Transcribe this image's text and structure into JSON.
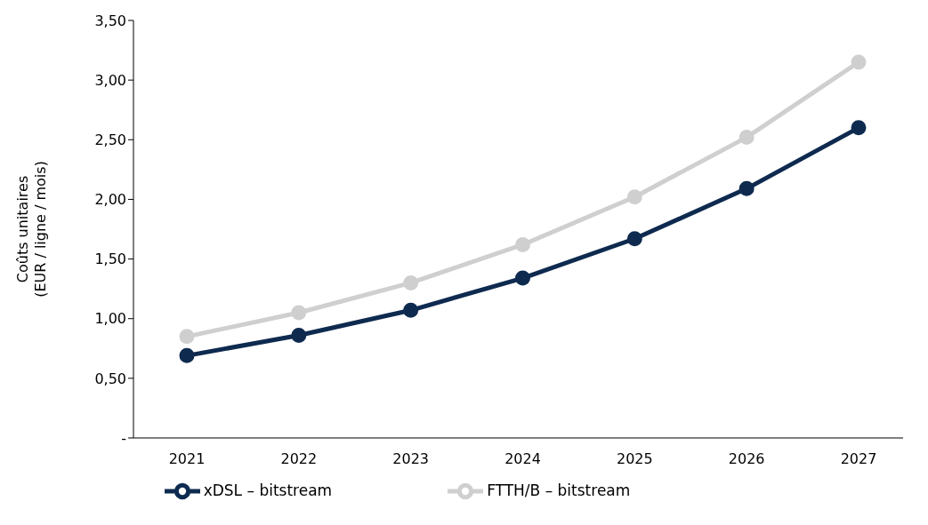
{
  "chart_data": {
    "type": "line",
    "ylabel": "Coûts unitaires\n(EUR / ligne / mois)",
    "categories": [
      "2021",
      "2022",
      "2023",
      "2024",
      "2025",
      "2026",
      "2027"
    ],
    "series": [
      {
        "name": "xDSL – bitstream",
        "color": "#0e2a4f",
        "values": [
          0.69,
          0.86,
          1.07,
          1.34,
          1.67,
          2.09,
          2.6
        ]
      },
      {
        "name": "FTTH/B – bitstream",
        "color": "#cfcfcf",
        "values": [
          0.85,
          1.05,
          1.3,
          1.62,
          2.02,
          2.52,
          3.15
        ]
      }
    ],
    "ylim": [
      0,
      3.5
    ],
    "yticks": [
      {
        "value": 0,
        "label": "-"
      },
      {
        "value": 0.5,
        "label": "0,50"
      },
      {
        "value": 1,
        "label": "1,00"
      },
      {
        "value": 1.5,
        "label": "1,50"
      },
      {
        "value": 2,
        "label": "2,00"
      },
      {
        "value": 2.5,
        "label": "2,50"
      },
      {
        "value": 3,
        "label": "3,00"
      },
      {
        "value": 3.5,
        "label": "3,50"
      }
    ],
    "grid": false,
    "legend": "bottom",
    "marker": "circle",
    "line_style": "solid"
  }
}
